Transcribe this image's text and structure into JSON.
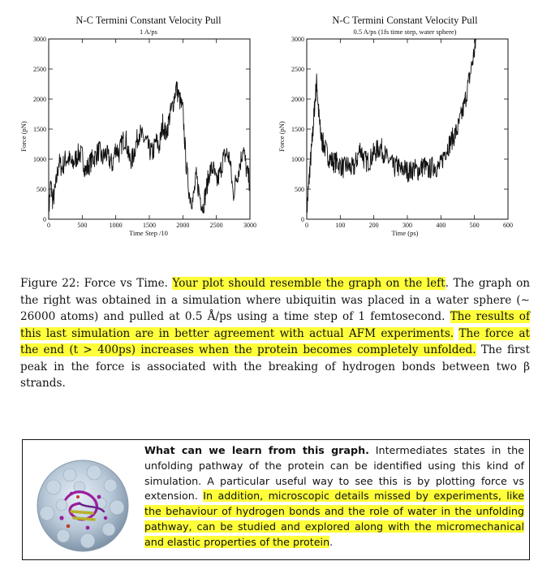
{
  "chart_data": [
    {
      "type": "line",
      "title": "N-C Termini Constant Velocity Pull",
      "subtitle": "1 A/ps",
      "xlabel": "Time Step /10",
      "ylabel": "Force (pN)",
      "xlim": [
        0,
        3000
      ],
      "ylim": [
        0,
        3000
      ],
      "xticks": [
        0,
        500,
        1000,
        1500,
        2000,
        2500,
        3000
      ],
      "yticks": [
        0,
        500,
        1000,
        1500,
        2000,
        2500,
        3000
      ],
      "grid": false,
      "series": [
        {
          "x": [
            0,
            30,
            60,
            100,
            150,
            200,
            250,
            300,
            350,
            400,
            450,
            500,
            550,
            600,
            650,
            700,
            750,
            800,
            850,
            900,
            950,
            1000,
            1050,
            1100,
            1150,
            1200,
            1250,
            1300,
            1350,
            1400,
            1450,
            1500,
            1550,
            1600,
            1650,
            1700,
            1750,
            1800,
            1850,
            1900,
            1950,
            2000,
            2050,
            2100,
            2150,
            2200,
            2250,
            2300,
            2350,
            2400,
            2450,
            2500,
            2550,
            2600,
            2650,
            2700,
            2750,
            2800,
            2850,
            2900,
            2950,
            3000
          ],
          "y": [
            100,
            600,
            300,
            500,
            950,
            850,
            1000,
            1000,
            900,
            1000,
            1100,
            1050,
            800,
            900,
            1000,
            1050,
            1150,
            1000,
            1100,
            1000,
            900,
            1200,
            1100,
            1300,
            1350,
            1000,
            1000,
            1250,
            1450,
            1350,
            1300,
            1150,
            1100,
            1300,
            1200,
            1600,
            1400,
            1700,
            1900,
            2200,
            2000,
            1800,
            900,
            400,
            300,
            700,
            400,
            200,
            500,
            800,
            850,
            600,
            750,
            1000,
            1100,
            1000,
            400,
            700,
            900,
            1200,
            800,
            600
          ]
        }
      ]
    },
    {
      "type": "line",
      "title": "N-C Termini Constant Velocity Pull",
      "subtitle": "0.5 A/ps (1fs time step, water sphere)",
      "xlabel": "Time (ps)",
      "ylabel": "Force (pN)",
      "xlim": [
        0,
        600
      ],
      "ylim": [
        0,
        3000
      ],
      "xticks": [
        0,
        100,
        200,
        300,
        400,
        500,
        600
      ],
      "yticks": [
        0,
        500,
        1000,
        1500,
        2000,
        2500,
        3000
      ],
      "grid": false,
      "series": [
        {
          "x": [
            0,
            5,
            10,
            15,
            20,
            25,
            30,
            35,
            40,
            45,
            50,
            60,
            70,
            80,
            90,
            100,
            110,
            120,
            130,
            140,
            150,
            160,
            170,
            180,
            190,
            200,
            210,
            220,
            230,
            240,
            250,
            260,
            270,
            280,
            290,
            300,
            310,
            320,
            330,
            340,
            350,
            360,
            370,
            380,
            390,
            400,
            410,
            420,
            430,
            440,
            450,
            460,
            470,
            480,
            490,
            500,
            505
          ],
          "y": [
            100,
            500,
            900,
            1200,
            1600,
            2000,
            2300,
            1800,
            1500,
            1300,
            1250,
            1100,
            1000,
            950,
            950,
            900,
            850,
            900,
            850,
            850,
            1000,
            1200,
            1000,
            950,
            1000,
            1100,
            1150,
            1200,
            1100,
            1000,
            950,
            850,
            900,
            800,
            850,
            800,
            800,
            850,
            800,
            850,
            900,
            800,
            850,
            900,
            850,
            900,
            1100,
            1200,
            1300,
            1400,
            1500,
            1700,
            1900,
            2200,
            2500,
            2800,
            3000
          ]
        }
      ]
    }
  ],
  "caption": {
    "prefix": "Figure 22: Force vs Time. ",
    "hl1": "Your plot should resemble the graph on the left",
    "mid1": ". The graph on the right was obtained in a simulation where ubiquitin was placed in a water sphere (∼ 26000 atoms) and pulled at 0.5 Å/ps using a time step of 1 femtosecond. ",
    "hl2": "The results of this last simulation are in better agreement with actual AFM experiments.",
    "mid2": " ",
    "hl3": "The force at the end (t > 400ps) increases when the protein becomes completely unfolded.",
    "suffix": " The first peak in the force is associated with the breaking of hydrogen bonds between two β strands."
  },
  "info_box": {
    "heading": "What can we learn from this graph.",
    "text1": " Intermediates states in the unfolding pathway of the protein can be identified using this kind of simulation. A particular useful way to see this is by plotting force vs extension. ",
    "hl": "In addition, microscopic details missed by experiments, like the behaviour of hydrogen bonds and the role of water in the unfolding pathway, can be studied and explored along with the micromechanical and elastic properties of the protein",
    "text2": "."
  }
}
